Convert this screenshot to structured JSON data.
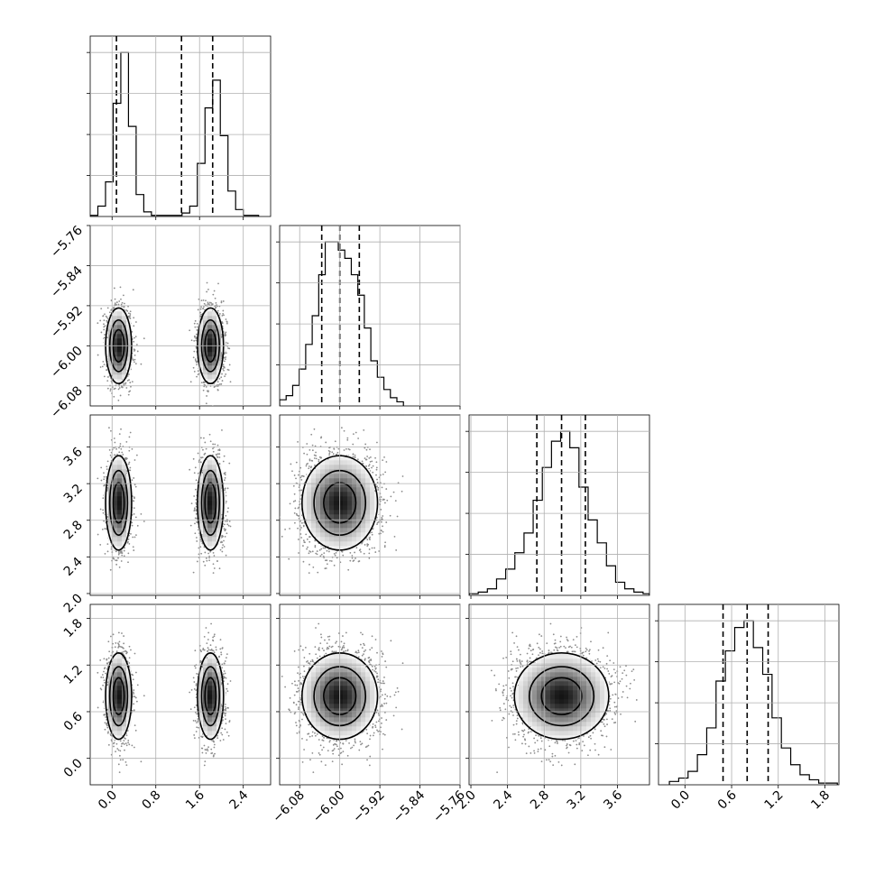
{
  "chart_data": {
    "type": "corner",
    "n_params": 4,
    "grid": true,
    "color": "#000000",
    "point_color": "#8c8c8c",
    "params": [
      {
        "range": [
          -0.4,
          2.9
        ],
        "ticks": [
          0.0,
          0.8,
          1.6,
          2.4
        ],
        "tick_labels": [
          "0.0",
          "0.8",
          "1.6",
          "2.4"
        ],
        "quantiles": [
          0.08,
          1.27,
          1.84
        ],
        "modes": [
          {
            "mean": 0.12,
            "sd": 0.12,
            "weight": 0.5
          },
          {
            "mean": 1.8,
            "sd": 0.12,
            "weight": 0.5
          }
        ],
        "hist_edges": [
          -0.4,
          -0.26,
          -0.12,
          0.02,
          0.16,
          0.3,
          0.44,
          0.58,
          0.72,
          0.86,
          1.0,
          1.14,
          1.28,
          1.42,
          1.56,
          1.7,
          1.84,
          1.98,
          2.12,
          2.26,
          2.4,
          2.54,
          2.68
        ],
        "hist_counts": [
          0.5,
          4.5,
          15.0,
          49.0,
          71.0,
          39.0,
          9.5,
          2.0,
          0.5,
          0.5,
          0.5,
          0.5,
          1.5,
          4.5,
          23.0,
          47.0,
          59.0,
          35.0,
          11.0,
          3.0,
          0.5,
          0.5
        ]
      },
      {
        "range": [
          -6.12,
          -5.76
        ],
        "ticks": [
          -6.08,
          -6.0,
          -5.92,
          -5.84,
          -5.76
        ],
        "tick_labels": [
          "−6.08",
          "−6.00",
          "−5.92",
          "−5.84",
          "−5.76"
        ],
        "quantiles": [
          -6.036,
          -6.0,
          -5.961
        ],
        "modes": [
          {
            "mean": -6.0,
            "sd": 0.038,
            "weight": 1.0
          }
        ],
        "hist_edges": [
          -6.12,
          -6.107,
          -6.094,
          -6.081,
          -6.068,
          -6.055,
          -6.042,
          -6.029,
          -6.016,
          -6.003,
          -5.99,
          -5.977,
          -5.964,
          -5.951,
          -5.938,
          -5.925,
          -5.912,
          -5.899,
          -5.886,
          -5.873
        ],
        "hist_counts": [
          1.5,
          2.5,
          5.0,
          9.0,
          15.0,
          22.0,
          32.0,
          40.0,
          40.0,
          38.0,
          36.0,
          32.0,
          27.0,
          19.0,
          11.0,
          7.0,
          4.0,
          2.0,
          1.0
        ]
      },
      {
        "range": [
          1.98,
          3.95
        ],
        "ticks": [
          2.0,
          2.4,
          2.8,
          3.2,
          3.6
        ],
        "tick_labels": [
          "2.0",
          "2.4",
          "2.8",
          "3.2",
          "3.6"
        ],
        "quantiles": [
          2.72,
          2.99,
          3.25
        ],
        "modes": [
          {
            "mean": 2.99,
            "sd": 0.26,
            "weight": 1.0
          }
        ],
        "hist_edges": [
          1.98,
          2.08,
          2.18,
          2.28,
          2.38,
          2.48,
          2.58,
          2.68,
          2.78,
          2.88,
          2.98,
          3.08,
          3.18,
          3.28,
          3.38,
          3.48,
          3.58,
          3.68,
          3.78,
          3.88,
          3.95
        ],
        "hist_counts": [
          0.5,
          1.0,
          2.0,
          5.0,
          8.0,
          13.0,
          19.0,
          29.0,
          39.0,
          47.0,
          50.0,
          45.0,
          33.0,
          23.0,
          16.0,
          9.0,
          4.0,
          2.0,
          1.0,
          0.5
        ]
      },
      {
        "range": [
          -0.34,
          1.98
        ],
        "ticks": [
          0.0,
          0.6,
          1.2,
          1.8
        ],
        "tick_labels": [
          "0.0",
          "0.6",
          "1.2",
          "1.8"
        ],
        "quantiles": [
          0.49,
          0.8,
          1.07
        ],
        "modes": [
          {
            "mean": 0.8,
            "sd": 0.28,
            "weight": 1.0
          }
        ],
        "hist_edges": [
          -0.2,
          -0.08,
          0.04,
          0.16,
          0.28,
          0.4,
          0.52,
          0.64,
          0.76,
          0.88,
          1.0,
          1.12,
          1.24,
          1.36,
          1.48,
          1.6,
          1.72,
          1.84,
          1.96
        ],
        "hist_counts": [
          1.0,
          2.0,
          4.0,
          9.0,
          17.0,
          31.0,
          40.0,
          47.0,
          49.0,
          41.0,
          33.0,
          20.0,
          11.0,
          6.0,
          3.0,
          1.5,
          0.5,
          0.5
        ]
      }
    ]
  }
}
